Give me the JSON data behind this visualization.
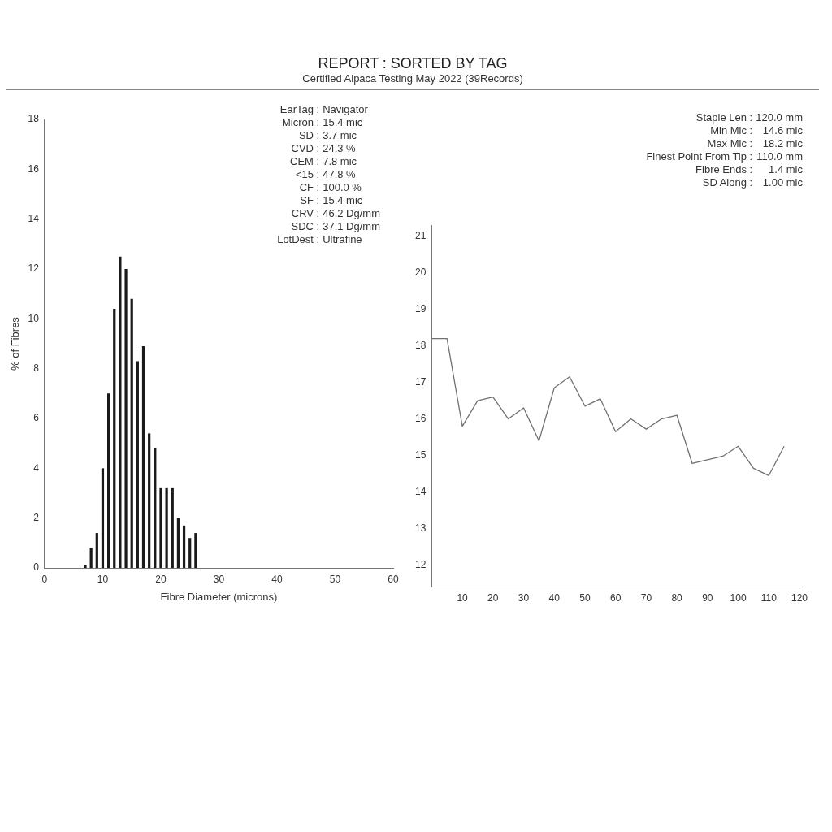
{
  "chart_data": [
    {
      "type": "histogram",
      "title": "REPORT : SORTED BY TAG",
      "subtitle": "Certified Alpaca Testing May 2022 (39Records)",
      "xlabel": "Fibre Diameter (microns)",
      "ylabel": "% of Fibres",
      "bins": [
        6.5,
        7.5,
        8.5,
        9.5,
        10.5,
        11.5,
        12.5,
        13.5,
        14.5,
        15.5,
        16.5,
        17.5,
        18.5,
        19.5,
        20.5,
        21.5,
        22.5,
        23.5,
        24.5,
        25.5,
        26.5
      ],
      "values": [
        0.1,
        0.8,
        1.4,
        4.0,
        7.0,
        10.4,
        12.5,
        12.0,
        10.8,
        8.3,
        8.9,
        5.4,
        4.8,
        3.2,
        3.2,
        3.2,
        2.0,
        1.7,
        1.2,
        1.4
      ],
      "color": "#1a1a1a",
      "xlim": [
        0,
        60
      ],
      "xticks": [
        0,
        10,
        20,
        30,
        40,
        50,
        60
      ],
      "ylim": [
        0,
        18
      ],
      "yticks": [
        0,
        2,
        4,
        6,
        8,
        10,
        12,
        14,
        16,
        18
      ],
      "annotations": [
        "EarTag : Navigator",
        "Micron : 15.4 mic",
        "SD : 3.7 mic",
        "CVD : 24.3 %",
        "CEM : 7.8 mic",
        "<15 : 47.8 %",
        "CF : 100.0 %",
        "SF : 15.4 mic",
        "CRV : 46.2 Dg/mm",
        "SDC : 37.1 Dg/mm",
        "LotDest : Ultrafine"
      ]
    },
    {
      "type": "line",
      "x": [
        0,
        5,
        10,
        15,
        20,
        25,
        30,
        35,
        40,
        45,
        50,
        55,
        60,
        65,
        70,
        75,
        80,
        85,
        90,
        95,
        100,
        105,
        110,
        115
      ],
      "values": [
        18.2,
        18.2,
        15.8,
        16.5,
        16.6,
        16.0,
        16.3,
        15.4,
        16.85,
        17.15,
        16.35,
        16.55,
        15.65,
        16.0,
        15.72,
        16.0,
        16.1,
        14.78,
        14.88,
        14.98,
        15.25,
        14.65,
        14.45,
        15.25
      ],
      "color": "#707070",
      "xlim": [
        0,
        120
      ],
      "xticks": [
        10,
        20,
        30,
        40,
        50,
        60,
        70,
        80,
        90,
        100,
        110,
        120
      ],
      "ylim": [
        11.4,
        21.3
      ],
      "yticks": [
        12,
        13,
        14,
        15,
        16,
        17,
        18,
        19,
        20,
        21
      ],
      "annotations": [
        "Staple Len : 120.0 mm",
        "Min Mic : 14.6 mic",
        "Max Mic : 18.2 mic",
        "Finest Point From Tip : 110.0 mm",
        "Fibre Ends : 1.4 mic",
        "SD Along : 1.00 mic"
      ]
    }
  ]
}
